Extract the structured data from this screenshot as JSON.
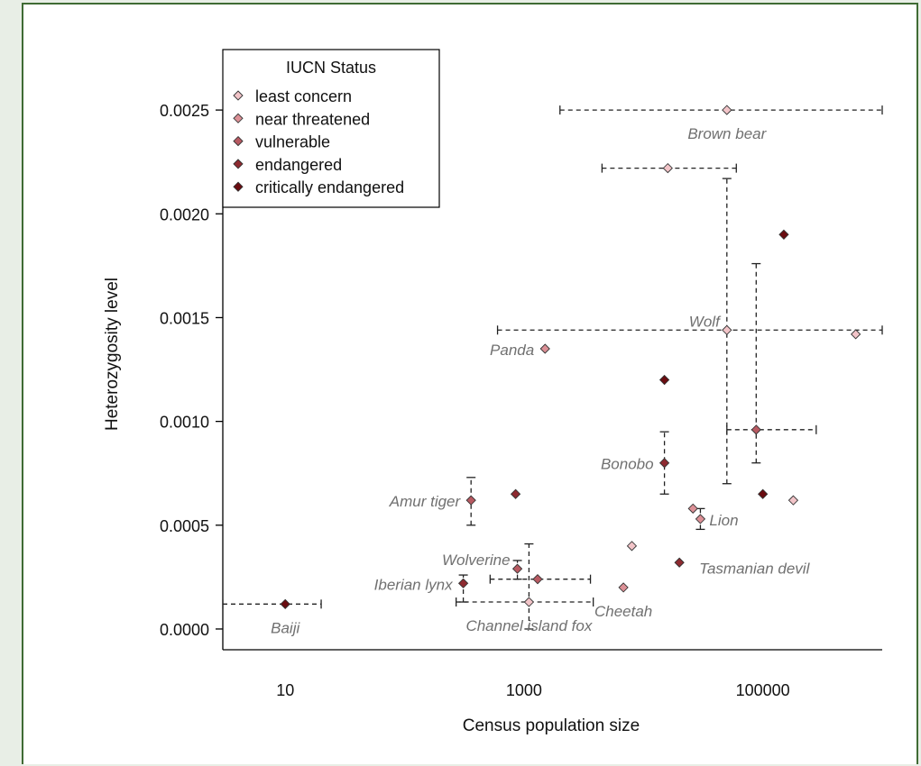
{
  "chart_data": {
    "type": "scatter",
    "xlabel": "Census population size",
    "ylabel": "Heterozygosity level",
    "x_scale": "log10",
    "xlim": [
      3,
      1000000
    ],
    "ylim": [
      -0.0001,
      0.0028
    ],
    "x_ticks": [
      10,
      1000,
      100000
    ],
    "x_tick_labels": [
      "10",
      "1000",
      "100000"
    ],
    "y_ticks": [
      0,
      0.0005,
      0.001,
      0.0015,
      0.002,
      0.0025
    ],
    "y_tick_labels": [
      "0.0000",
      "0.0005",
      "0.0010",
      "0.0015",
      "0.0020",
      "0.0025"
    ],
    "grid": false,
    "legend": {
      "title": "IUCN Status",
      "position": "top-left",
      "entries": [
        {
          "label": "least concern",
          "color": "#f2c4c8"
        },
        {
          "label": "near threatened",
          "color": "#dc9096"
        },
        {
          "label": "vulnerable",
          "color": "#b85a62"
        },
        {
          "label": "endangered",
          "color": "#8e2a30"
        },
        {
          "label": "critically endangered",
          "color": "#6a0c10"
        }
      ]
    },
    "points": [
      {
        "x": 50000,
        "y": 0.0025,
        "status": 0,
        "label": "Brown bear",
        "label_pos": "below",
        "xerr": [
          2000,
          1000000
        ]
      },
      {
        "x": 16000,
        "y": 0.00222,
        "status": 0,
        "xerr": [
          4500,
          60000
        ]
      },
      {
        "x": 50000,
        "y": 0.00144,
        "status": 0,
        "label": "Wolf",
        "label_pos": "upper-left",
        "xerr": [
          600,
          1000000
        ],
        "yerr": [
          0.0007,
          0.00217
        ]
      },
      {
        "x": 600000,
        "y": 0.00142,
        "status": 0
      },
      {
        "x": 180000,
        "y": 0.00062,
        "status": 0
      },
      {
        "x": 8000,
        "y": 0.0004,
        "status": 0
      },
      {
        "x": 1100,
        "y": 0.00013,
        "status": 0,
        "label": "Channel island fox",
        "label_pos": "below",
        "xerr": [
          270,
          3800
        ],
        "yerr": [
          0.0,
          0.00041
        ]
      },
      {
        "x": 26000,
        "y": 0.00058,
        "status": 1
      },
      {
        "x": 30000,
        "y": 0.00053,
        "status": 1,
        "label": "Lion",
        "label_pos": "right",
        "yerr": [
          0.00048,
          0.00058
        ]
      },
      {
        "x": 1500,
        "y": 0.00135,
        "status": 1,
        "label": "Panda",
        "label_pos": "left"
      },
      {
        "x": 6800,
        "y": 0.0002,
        "status": 1,
        "label": "Cheetah",
        "label_pos": "below"
      },
      {
        "x": 88000,
        "y": 0.00096,
        "status": 2,
        "yerr": [
          0.0008,
          0.00176
        ],
        "xerr": [
          50000,
          280000
        ]
      },
      {
        "x": 360,
        "y": 0.00062,
        "status": 2,
        "label": "Amur tiger",
        "label_pos": "left",
        "yerr": [
          0.0005,
          0.00073
        ]
      },
      {
        "x": 880,
        "y": 0.00029,
        "status": 2,
        "label": "Wolverine",
        "label_pos": "upper-left",
        "yerr": [
          0.00024,
          0.00033
        ]
      },
      {
        "x": 1300,
        "y": 0.00024,
        "status": 2,
        "xerr": [
          520,
          3600
        ]
      },
      {
        "x": 15000,
        "y": 0.0008,
        "status": 3,
        "label": "Bonobo",
        "label_pos": "left",
        "yerr": [
          0.00065,
          0.00095
        ]
      },
      {
        "x": 310,
        "y": 0.00022,
        "status": 3,
        "label": "Iberian lynx",
        "label_pos": "left",
        "yerr": [
          0.00013,
          0.00026
        ]
      },
      {
        "x": 850,
        "y": 0.00065,
        "status": 3
      },
      {
        "x": 20000,
        "y": 0.00032,
        "status": 3,
        "label": "Tasmanian devil",
        "label_pos": "lower-right"
      },
      {
        "x": 100000,
        "y": 0.00065,
        "status": 4
      },
      {
        "x": 15000,
        "y": 0.0012,
        "status": 4
      },
      {
        "x": 150000,
        "y": 0.0019,
        "status": 4
      },
      {
        "x": 10,
        "y": 0.00012,
        "status": 4,
        "label": "Baiji",
        "label_pos": "below",
        "xerr": [
          3,
          20
        ]
      }
    ]
  }
}
